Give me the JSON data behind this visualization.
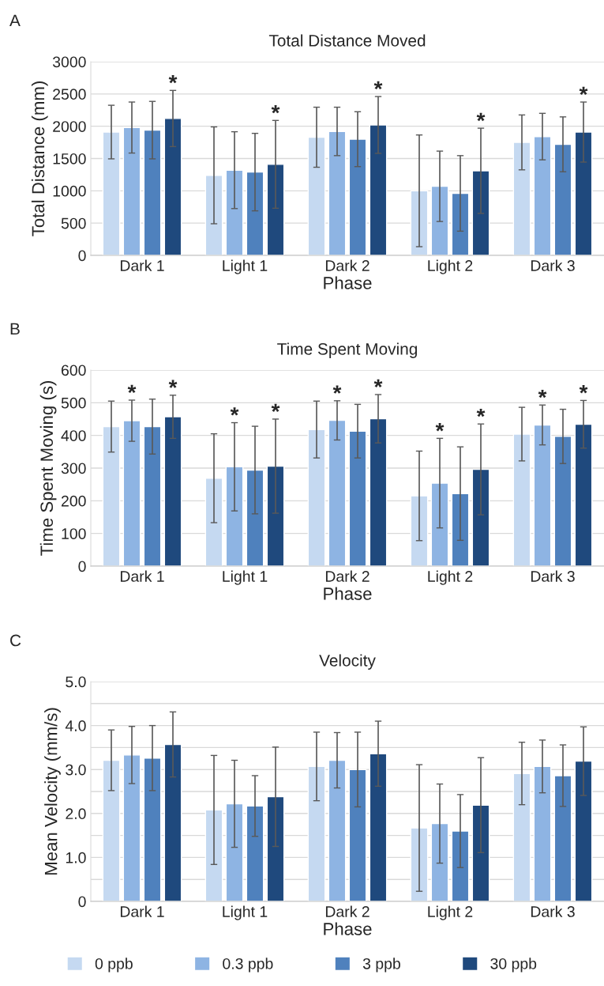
{
  "chart_data": [
    {
      "type": "bar",
      "title": "Total Distance Moved",
      "xlabel": "Phase",
      "ylabel": "Total Distance (mm)",
      "annotations": [
        "A"
      ],
      "categories": [
        "Dark 1",
        "Light 1",
        "Dark 2",
        "Light 2",
        "Dark 3"
      ],
      "series": [
        {
          "name": "0 ppb",
          "color": "#c5d9f1",
          "values": [
            1910,
            1240,
            1830,
            1000,
            1750
          ],
          "errors": [
            415,
            750,
            465,
            865,
            425
          ]
        },
        {
          "name": "0.3 ppb",
          "color": "#8eb4e3",
          "values": [
            1980,
            1320,
            1920,
            1070,
            1840
          ],
          "errors": [
            395,
            595,
            375,
            545,
            360
          ]
        },
        {
          "name": "3 ppb",
          "color": "#4f81bd",
          "values": [
            1940,
            1290,
            1800,
            960,
            1720
          ],
          "errors": [
            445,
            600,
            425,
            585,
            425
          ]
        },
        {
          "name": "30 ppb",
          "color": "#1f497d",
          "values": [
            2120,
            1410,
            2020,
            1310,
            1910
          ],
          "errors": [
            435,
            680,
            440,
            660,
            465
          ],
          "value_labels": [
            "*",
            "*",
            "*",
            "*",
            "*"
          ]
        }
      ],
      "ylim": [
        0,
        3000
      ],
      "yticks": [
        0,
        500,
        1000,
        1500,
        2000,
        2500,
        3000
      ],
      "grid": "y",
      "legend": "bottom"
    },
    {
      "type": "bar",
      "title": "Time Spent Moving",
      "xlabel": "Phase",
      "ylabel": "Time Spent Moving (s)",
      "annotations": [
        "B"
      ],
      "categories": [
        "Dark 1",
        "Light 1",
        "Dark 2",
        "Light 2",
        "Dark 3"
      ],
      "series": [
        {
          "color": "#c5d9f1",
          "values": [
            427,
            269,
            418,
            215,
            404
          ],
          "errors": [
            78,
            136,
            87,
            137,
            82
          ]
        },
        {
          "color": "#8eb4e3",
          "values": [
            445,
            304,
            446,
            254,
            432
          ],
          "errors": [
            63,
            135,
            60,
            137,
            61
          ],
          "value_labels": [
            "*",
            "*",
            "*",
            "*",
            "*"
          ]
        },
        {
          "color": "#4f81bd",
          "values": [
            427,
            294,
            413,
            222,
            397
          ],
          "errors": [
            84,
            134,
            82,
            143,
            83
          ]
        },
        {
          "color": "#1f497d",
          "values": [
            457,
            306,
            451,
            296,
            434
          ],
          "errors": [
            66,
            144,
            74,
            139,
            73
          ],
          "value_labels": [
            "*",
            "*",
            "*",
            "*",
            "*"
          ]
        }
      ],
      "ylim": [
        0,
        600
      ],
      "yticks": [
        0,
        100,
        200,
        300,
        400,
        500,
        600
      ],
      "grid": "y"
    },
    {
      "type": "bar",
      "title": "Velocity",
      "xlabel": "Phase",
      "ylabel": "Mean Velocity (mm/s)",
      "annotations": [
        "C"
      ],
      "categories": [
        "Dark 1",
        "Light 1",
        "Dark 2",
        "Light 2",
        "Dark 3"
      ],
      "series": [
        {
          "color": "#c5d9f1",
          "values": [
            3.21,
            2.08,
            3.07,
            1.67,
            2.91
          ],
          "errors": [
            0.69,
            1.24,
            0.78,
            1.44,
            0.71
          ]
        },
        {
          "color": "#8eb4e3",
          "values": [
            3.33,
            2.22,
            3.21,
            1.77,
            3.07
          ],
          "errors": [
            0.65,
            0.99,
            0.63,
            0.9,
            0.6
          ]
        },
        {
          "color": "#4f81bd",
          "values": [
            3.26,
            2.17,
            3.0,
            1.6,
            2.86
          ],
          "errors": [
            0.74,
            0.69,
            0.85,
            0.83,
            0.7
          ]
        },
        {
          "color": "#1f497d",
          "values": [
            3.57,
            2.38,
            3.36,
            2.19,
            3.19
          ],
          "errors": [
            0.74,
            1.13,
            0.74,
            1.08,
            0.78
          ]
        }
      ],
      "ylim": [
        0,
        5
      ],
      "yticks": [
        0,
        {
          "value": 0.5,
          "label": null
        },
        {
          "value": 1,
          "label": "1.0"
        },
        {
          "value": 1.5,
          "label": null
        },
        {
          "value": 2,
          "label": "2.0"
        },
        {
          "value": 2.5,
          "label": null
        },
        {
          "value": 3,
          "label": "3.0"
        },
        {
          "value": 3.5,
          "label": null
        },
        {
          "value": 4,
          "label": "4.0"
        },
        {
          "value": 4.5,
          "label": null
        },
        {
          "value": 5,
          "label": "5.0"
        }
      ],
      "grid": "y"
    }
  ]
}
